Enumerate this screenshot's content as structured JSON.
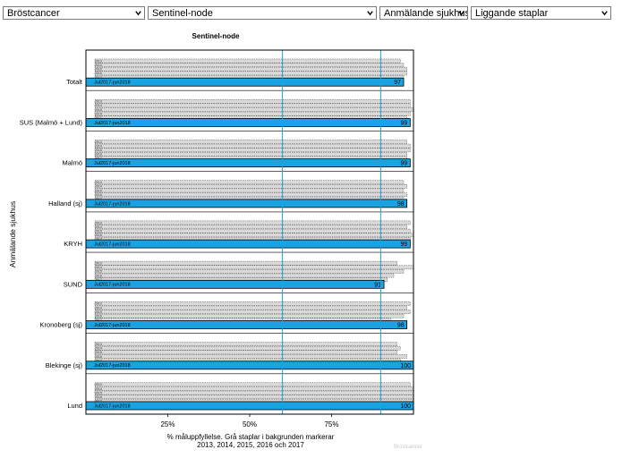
{
  "dropdowns": [
    {
      "value": "Bröstcancer"
    },
    {
      "value": "Sentinel-node"
    },
    {
      "value": "Anmälande sjukhus"
    },
    {
      "value": "Liggande staplar"
    }
  ],
  "colors": {
    "current_bar": "#1aa3e2",
    "history_bar": "#d9d9d9",
    "target_line": "#1aa3e2",
    "axis": "#000000"
  },
  "chart_data": {
    "type": "bar",
    "orientation": "horizontal",
    "title": "Sentinel-node",
    "ylabel": "Anmälande sjukhus",
    "xlabel_lines": [
      "% måluppfyllelse. Grå staplar i bakgrunden markerar",
      "2013, 2014, 2015, 2016 och 2017"
    ],
    "watermark": "Bröstcancer",
    "xlim": [
      0,
      100
    ],
    "xticks": [
      25,
      50,
      75
    ],
    "xtick_labels": [
      "25%",
      "50%",
      "75%"
    ],
    "target_lines": [
      60,
      90
    ],
    "current_period_label": "Jul2017-jun2018",
    "history_labels": [
      "2013",
      "2014",
      "2015",
      "2016",
      "2017"
    ],
    "categories": [
      "Totalt",
      "SUS (Malmö + Lund)",
      "Malmö",
      "Halland (sj)",
      "KRYH",
      "SUND",
      "Kronoberg (sj)",
      "Blekinge (sj)",
      "Lund"
    ],
    "values": [
      97,
      99,
      99,
      98,
      99,
      91,
      98,
      100,
      100
    ],
    "history": [
      [
        96,
        97,
        98,
        98,
        97
      ],
      [
        99,
        99,
        100,
        99,
        98
      ],
      [
        98,
        99,
        99,
        98,
        98
      ],
      [
        97,
        98,
        97,
        98,
        97
      ],
      [
        99,
        98,
        99,
        100,
        99
      ],
      [
        95,
        100,
        97,
        94,
        92
      ],
      [
        99,
        98,
        99,
        97,
        93
      ],
      [
        95,
        96,
        95,
        98,
        96
      ],
      [
        99,
        100,
        100,
        100,
        100
      ]
    ]
  }
}
